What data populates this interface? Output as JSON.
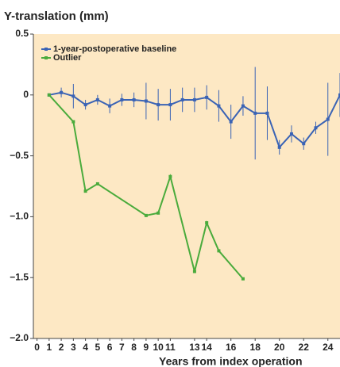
{
  "chart_data": {
    "type": "line",
    "title": "Y-translation (mm)",
    "x_label": "Years from index operation",
    "xlim": [
      -0.3,
      25
    ],
    "xticks": [
      0,
      1,
      2,
      3,
      4,
      5,
      6,
      7,
      8,
      9,
      10,
      11,
      13,
      14,
      16,
      18,
      20,
      22,
      24
    ],
    "ylim": [
      -2.0,
      0.5
    ],
    "yticks": [
      {
        "value": -2.0,
        "label": "−2.0"
      },
      {
        "value": -1.5,
        "label": "−1.5"
      },
      {
        "value": -1.0,
        "label": "−1.0"
      },
      {
        "value": -0.5,
        "label": "−0.5"
      },
      0,
      0.5
    ],
    "legend": "top-left",
    "series": [
      {
        "name": "1-year-postoperative baseline",
        "color": "#3a63b5",
        "x": [
          1,
          2,
          3,
          4,
          5,
          6,
          7,
          8,
          9,
          10,
          11,
          12,
          13,
          14,
          15,
          16,
          17,
          18,
          19,
          20,
          21,
          22,
          23,
          24,
          25
        ],
        "values": [
          0,
          0.02,
          -0.01,
          -0.08,
          -0.04,
          -0.09,
          -0.04,
          -0.04,
          -0.05,
          -0.08,
          -0.08,
          -0.04,
          -0.04,
          -0.02,
          -0.09,
          -0.22,
          -0.09,
          -0.15,
          -0.15,
          -0.43,
          -0.32,
          -0.4,
          -0.27,
          -0.2,
          0
        ],
        "errors": [
          0,
          0.04,
          0.1,
          0.04,
          0.04,
          0.06,
          0.05,
          0.06,
          0.15,
          0.13,
          0.13,
          0.1,
          0.1,
          0.1,
          0.13,
          0.14,
          0.08,
          0.38,
          0.22,
          0.06,
          0.07,
          0.05,
          0.05,
          0.3,
          0.18
        ]
      },
      {
        "name": "Outlier",
        "color": "#4aab3c",
        "x": [
          1,
          3,
          4,
          5,
          9,
          10,
          11,
          13,
          14,
          15,
          17
        ],
        "values": [
          0,
          -0.22,
          -0.79,
          -0.73,
          -0.99,
          -0.97,
          -0.67,
          -1.45,
          -1.05,
          -1.28,
          -1.51
        ]
      }
    ]
  }
}
